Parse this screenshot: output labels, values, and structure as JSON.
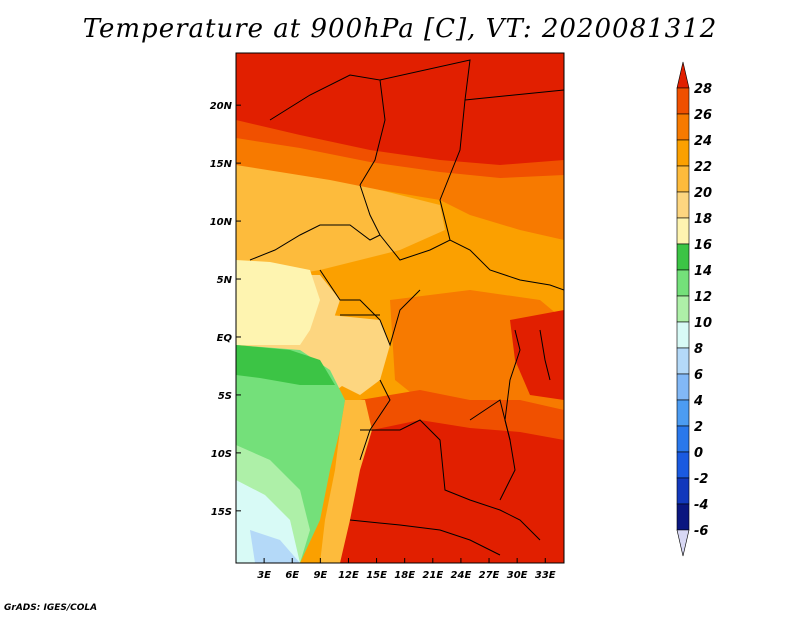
{
  "title": "Temperature at 900hPa [C], VT: 2020081312",
  "credit": "GrADS: IGES/COLA",
  "axes": {
    "lat_labels": [
      "20N",
      "15N",
      "10N",
      "5N",
      "EQ",
      "5S",
      "10S",
      "15S"
    ],
    "lat_values": [
      20,
      15,
      10,
      5,
      0,
      -5,
      -10,
      -15
    ],
    "lon_labels": [
      "3E",
      "6E",
      "9E",
      "12E",
      "15E",
      "18E",
      "21E",
      "24E",
      "27E",
      "30E",
      "33E"
    ],
    "lon_values": [
      3,
      6,
      9,
      12,
      15,
      18,
      21,
      24,
      27,
      30,
      33
    ],
    "lat_range": [
      -19.5,
      24.5
    ],
    "lon_range": [
      0,
      35
    ]
  },
  "colorbar": {
    "labels": [
      "28",
      "26",
      "24",
      "22",
      "20",
      "18",
      "16",
      "14",
      "12",
      "10",
      "8",
      "6",
      "4",
      "2",
      "0",
      "-2",
      "-4",
      "-6"
    ],
    "values": [
      28,
      26,
      24,
      22,
      20,
      18,
      16,
      14,
      12,
      10,
      8,
      6,
      4,
      2,
      0,
      -2,
      -4,
      -6
    ],
    "colors_top_to_bottom": [
      "#e11f00",
      "#f05000",
      "#f77a00",
      "#fba000",
      "#fdbb3c",
      "#fdd680",
      "#fef4b0",
      "#3cc445",
      "#74e07a",
      "#aef0a8",
      "#d8faf6",
      "#b4d9f8",
      "#82b8f6",
      "#4c9cf2",
      "#2a78ec",
      "#1a5ae0",
      "#1238bc",
      "#0a1680",
      "#d8d8f4"
    ]
  },
  "palette": {
    "t28": "#e11f00",
    "t26": "#f05000",
    "t24": "#f77a00",
    "t22": "#fba000",
    "t20": "#fdbb3c",
    "t18": "#fdd680",
    "t16": "#fef4b0",
    "t14": "#3cc445",
    "t12": "#74e07a",
    "t10": "#aef0a8",
    "t8": "#d8faf6",
    "t6": "#b4d9f8"
  }
}
